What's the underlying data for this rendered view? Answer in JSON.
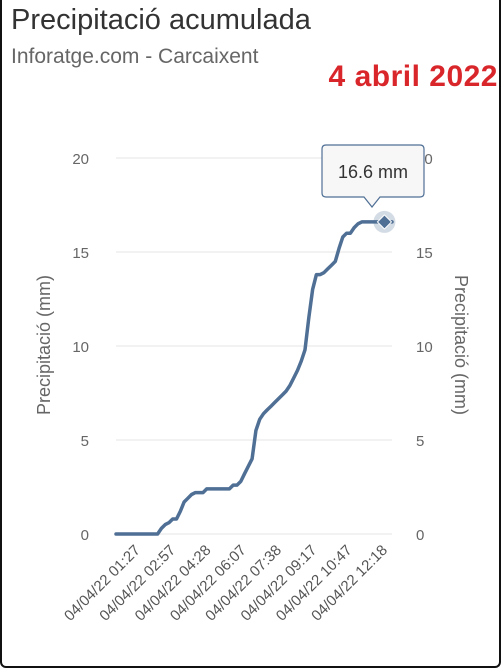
{
  "header": {
    "title": "Precipitació acumulada",
    "subtitle": "Inforatge.com - Carcaixent",
    "date": "4 abril 2022"
  },
  "colors": {
    "line": "#4f6f95",
    "date_text": "#d9262b",
    "grid": "#e6e6e6"
  },
  "tooltip": {
    "text": "16.6 mm"
  },
  "chart_data": {
    "type": "line",
    "title": "Precipitació acumulada",
    "ylabel": "Precipitació (mm)",
    "ylabel_right": "Precipitació (mm)",
    "ylim": [
      0,
      20
    ],
    "yticks": [
      0,
      5,
      10,
      15,
      20
    ],
    "grid": true,
    "xticks": [
      "04/04/22 01:27",
      "04/04/22 02:57",
      "04/04/22 04:28",
      "04/04/22 06:07",
      "04/04/22 07:38",
      "04/04/22 09:17",
      "04/04/22 10:47",
      "04/04/22 12:18"
    ],
    "series": [
      {
        "values": [
          0,
          0,
          0,
          0,
          0,
          0,
          0,
          0,
          0,
          0,
          0,
          0,
          0.3,
          0.5,
          0.6,
          0.8,
          0.8,
          1.2,
          1.7,
          1.9,
          2.1,
          2.2,
          2.2,
          2.2,
          2.4,
          2.4,
          2.4,
          2.4,
          2.4,
          2.4,
          2.4,
          2.6,
          2.6,
          2.8,
          3.2,
          3.6,
          4.0,
          5.5,
          6.1,
          6.4,
          6.6,
          6.8,
          7.0,
          7.2,
          7.4,
          7.6,
          7.9,
          8.3,
          8.7,
          9.2,
          9.8,
          11.5,
          13.0,
          13.8,
          13.8,
          13.9,
          14.1,
          14.3,
          14.5,
          15.2,
          15.8,
          16.0,
          16.0,
          16.3,
          16.5,
          16.6,
          16.6,
          16.6,
          16.6,
          16.6,
          16.6,
          16.6,
          16.6,
          16.6
        ],
        "highlight": {
          "index": 71,
          "value": 16.6
        }
      }
    ]
  }
}
